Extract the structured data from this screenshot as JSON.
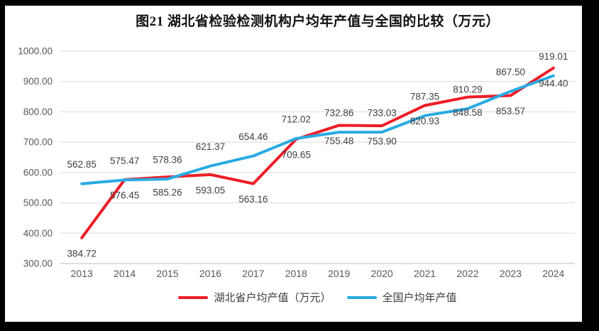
{
  "chart_data": {
    "type": "line",
    "title": "图21 湖北省检验检测机构户均年产值与全国的比较（万元）",
    "categories": [
      "2013",
      "2014",
      "2015",
      "2016",
      "2017",
      "2018",
      "2019",
      "2020",
      "2021",
      "2022",
      "2023",
      "2024"
    ],
    "series": [
      {
        "name": "湖北省户均产值（万元）",
        "color": "#ee1c25",
        "label_position": "below",
        "values": [
          384.72,
          576.45,
          585.26,
          593.05,
          563.16,
          709.65,
          755.48,
          753.9,
          820.93,
          848.58,
          853.57,
          944.4
        ]
      },
      {
        "name": "全国户均年产值",
        "color": "#29abe2",
        "label_position": "above",
        "values": [
          562.85,
          575.47,
          578.36,
          621.37,
          654.46,
          712.02,
          732.86,
          733.03,
          787.35,
          810.29,
          867.5,
          919.01
        ]
      }
    ],
    "ylim": [
      300,
      1000
    ],
    "yticks": [
      {
        "value": 300,
        "label": "300.00"
      },
      {
        "value": 400,
        "label": "400.00"
      },
      {
        "value": 500,
        "label": "500.00"
      },
      {
        "value": 600,
        "label": "600.00"
      },
      {
        "value": 700,
        "label": "700.00"
      },
      {
        "value": 800,
        "label": "800.00"
      },
      {
        "value": 900,
        "label": "900.00"
      },
      {
        "value": 1000,
        "label": "1000.00"
      }
    ],
    "grid": true,
    "legend_position": "bottom",
    "colors": {
      "grid": "#d9d9d9",
      "axis_line": "#bfbfbf",
      "axis_text": "#595959",
      "label_text": "#3f3f3f",
      "frame": "#000000",
      "background": "#ffffff"
    }
  }
}
